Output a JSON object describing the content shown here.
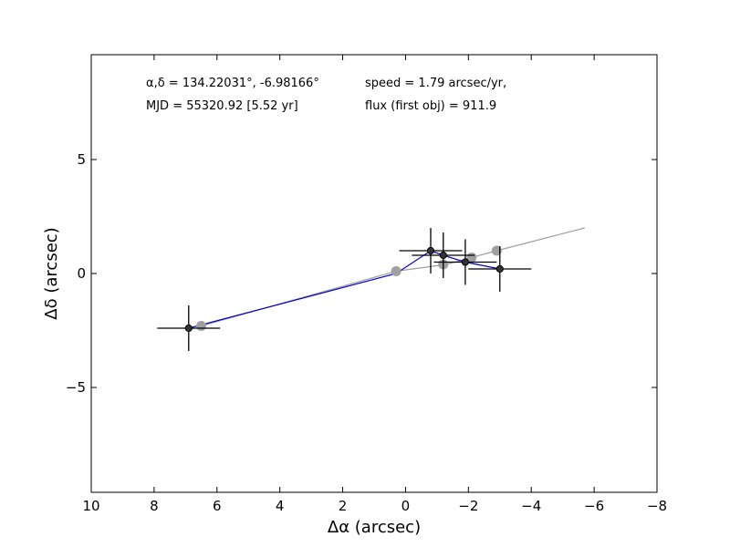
{
  "chart_data": {
    "type": "scatter",
    "title": "",
    "xlabel": "Δα (arcsec)",
    "ylabel": "Δδ (arcsec)",
    "xlim": [
      10,
      -8
    ],
    "ylim": [
      -9.6,
      9.6
    ],
    "x_ticks": [
      10,
      8,
      6,
      4,
      2,
      0,
      -2,
      -4,
      -6,
      -8
    ],
    "x_tick_labels": [
      "10",
      "8",
      "6",
      "4",
      "2",
      "0",
      "−2",
      "−4",
      "−6",
      "−8"
    ],
    "y_ticks": [
      -5,
      0,
      5
    ],
    "y_tick_labels": [
      "−5",
      "0",
      "5"
    ],
    "grid": false,
    "annotations": {
      "coords": "α,δ = 134.22031°, -6.98166°",
      "mjd": "MJD = 55320.92 [5.52 yr]",
      "speed": "speed = 1.79 arcsec/yr,",
      "flux": "flux (first obj) = 911.9"
    },
    "series": [
      {
        "kind": "model-path",
        "color": "#a0a0a0",
        "x": [
          6.5,
          0.3,
          -1.3,
          -2.9,
          -5.7
        ],
        "y": [
          -2.3,
          0.1,
          0.4,
          1.0,
          2.0
        ]
      },
      {
        "kind": "model-points",
        "color": "#a0a0a0",
        "x": [
          6.5,
          0.3,
          -1.2,
          -2.1,
          -2.9
        ],
        "y": [
          -2.3,
          0.1,
          0.4,
          0.7,
          1.0
        ]
      },
      {
        "kind": "observed-path",
        "color": "#0000cc",
        "x": [
          6.9,
          0.3,
          -0.8,
          -1.2,
          -1.9,
          -3.0
        ],
        "y": [
          -2.4,
          0.0,
          1.0,
          0.8,
          0.5,
          0.2
        ]
      },
      {
        "kind": "observed-points",
        "color": "#000000",
        "x": [
          6.9,
          -0.8,
          -1.2,
          -1.9,
          -3.0
        ],
        "y": [
          -2.4,
          1.0,
          0.8,
          0.5,
          0.2
        ],
        "x_err": [
          1.0,
          1.0,
          1.0,
          1.0,
          1.0
        ],
        "y_err": [
          1.0,
          1.0,
          1.0,
          1.0,
          1.0
        ]
      }
    ]
  }
}
